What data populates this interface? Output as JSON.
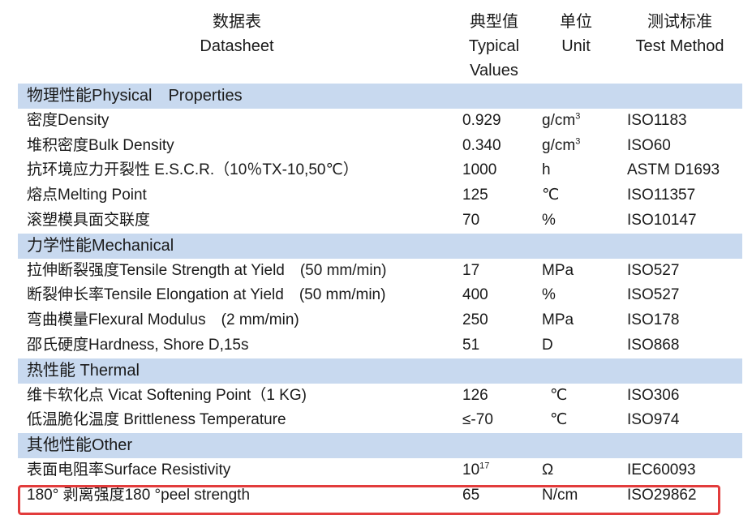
{
  "header": {
    "name": [
      "数据表",
      "Datasheet"
    ],
    "value": [
      "典型值",
      "Typical",
      "Values"
    ],
    "unit": [
      "单位",
      "Unit"
    ],
    "method": [
      "测试标准",
      "Test Method"
    ]
  },
  "sections": [
    {
      "title": "物理性能Physical　Properties",
      "rows": [
        {
          "name": "密度Density",
          "value": "0.929",
          "unit": "g/cm",
          "unit_sup": "3",
          "method": "ISO1183"
        },
        {
          "name": "堆积密度Bulk Density",
          "value": "0.340",
          "unit": "g/cm",
          "unit_sup": "3",
          "method": "ISO60"
        },
        {
          "name": "抗环境应力开裂性 E.S.C.R.（10％TX-10,50℃）",
          "value": "1000",
          "unit": "h",
          "method": "ASTM D1693"
        },
        {
          "name": "熔点Melting Point",
          "value": "125",
          "unit": "℃",
          "method": "ISO11357"
        },
        {
          "name": "滚塑模具面交联度",
          "value": "70",
          "unit": "%",
          "method": "ISO10147"
        }
      ]
    },
    {
      "title": "力学性能Mechanical",
      "rows": [
        {
          "name": "拉伸断裂强度Tensile Strength at Yield　(50 mm/min)",
          "value": "17",
          "unit": "MPa",
          "method": "ISO527"
        },
        {
          "name": "断裂伸长率Tensile Elongation at Yield　(50 mm/min)",
          "value": "400",
          "unit": "%",
          "method": "ISO527"
        },
        {
          "name": "弯曲模量Flexural Modulus　(2 mm/min)",
          "value": "250",
          "unit": "MPa",
          "method": "ISO178"
        },
        {
          "name": "邵氏硬度Hardness, Shore D,15s",
          "value": "51",
          "unit": "D",
          "method": "ISO868"
        }
      ]
    },
    {
      "title": "热性能 Thermal",
      "rows": [
        {
          "name": "维卡软化点 Vicat Softening Point（1 KG)",
          "value": "126",
          "unit": "℃",
          "method": "ISO306",
          "shift": true
        },
        {
          "name": "低温脆化温度 Brittleness Temperature",
          "value": "≤-70",
          "unit": "℃",
          "method": "ISO974",
          "shift": true
        }
      ]
    },
    {
      "title": "其他性能Other",
      "rows": [
        {
          "name": "表面电阻率Surface Resistivity",
          "value": "10",
          "value_sup": "17",
          "unit": "Ω",
          "method": "IEC60093"
        },
        {
          "name": "180° 剥离强度180 °peel strength",
          "value": "65",
          "unit": "N/cm",
          "method": "ISO29862",
          "highlighted": true
        }
      ]
    }
  ],
  "highlight_color": "#e23c3c",
  "section_bg": "#c8d9ef"
}
